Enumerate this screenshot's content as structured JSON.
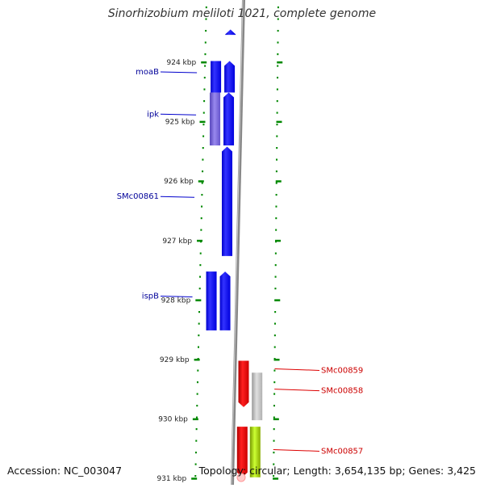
{
  "title": "Sinorhizobium meliloti 1021, complete genome",
  "footer": {
    "accession": "Accession: NC_003047",
    "topology": "Topology: circular; Length: 3,654,135 bp; Genes: 3,425"
  },
  "scale": {
    "ticks": [
      {
        "label": "924 kbp",
        "kbp": 924
      },
      {
        "label": "925 kbp",
        "kbp": 925
      },
      {
        "label": "926 kbp",
        "kbp": 926
      },
      {
        "label": "927 kbp",
        "kbp": 927
      },
      {
        "label": "928 kbp",
        "kbp": 928
      },
      {
        "label": "929 kbp",
        "kbp": 929
      },
      {
        "label": "930 kbp",
        "kbp": 930
      },
      {
        "label": "931 kbp",
        "kbp": 931
      }
    ]
  },
  "genes": [
    {
      "label": "",
      "strand": "-",
      "start_kbp": 923.45,
      "end_kbp": 923.54,
      "color": "#0000ff"
    },
    {
      "label": "moaB",
      "strand": "-",
      "start_kbp": 923.98,
      "end_kbp": 924.51,
      "color": "#0000ff"
    },
    {
      "label": "ipk",
      "strand": "-",
      "start_kbp": 924.51,
      "end_kbp": 925.4,
      "color": "#0000ff"
    },
    {
      "label": "SMc00861",
      "strand": "-",
      "start_kbp": 925.42,
      "end_kbp": 927.26,
      "color": "#0000ff"
    },
    {
      "label": "ispB",
      "strand": "-",
      "start_kbp": 927.52,
      "end_kbp": 928.51,
      "color": "#0000ff"
    },
    {
      "label": "SMc00859",
      "strand": "+",
      "start_kbp": 929.02,
      "end_kbp": 929.8,
      "color": "#ee0000"
    },
    {
      "label": "SMc00858",
      "strand": "+",
      "start_kbp": 929.22,
      "end_kbp": 930.02,
      "color": "#bfbfbf"
    },
    {
      "label": "SMc00857",
      "strand": "+",
      "start_kbp": 930.13,
      "end_kbp": 930.98,
      "color": "#ee0000"
    },
    {
      "label": "",
      "strand": "+",
      "start_kbp": 930.13,
      "end_kbp": 930.98,
      "color": "#99cc00"
    }
  ]
}
